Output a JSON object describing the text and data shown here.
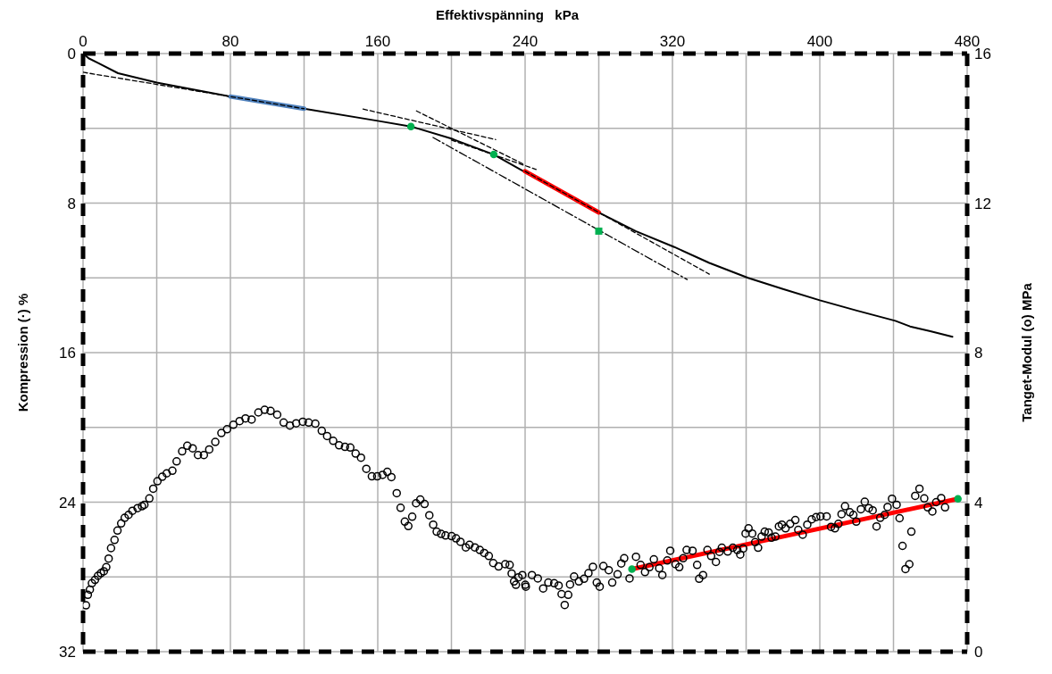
{
  "chart_data": {
    "type": "line",
    "xlabel": "Effektivspänning   kPa",
    "ylabel": "Kompression (·)   %",
    "y2label": "Tanget-Modul (o)   MPa",
    "xlim": [
      0,
      480
    ],
    "xticks": [
      0,
      {
        "value": 40,
        "label": null
      },
      80,
      {
        "value": 120,
        "label": null
      },
      160,
      {
        "value": 200,
        "label": null
      },
      240,
      {
        "value": 280,
        "label": null
      },
      320,
      {
        "value": 360,
        "label": null
      },
      400,
      {
        "value": 440,
        "label": null
      },
      480
    ],
    "ylim": [
      32,
      0
    ],
    "yticks": [
      0,
      {
        "value": 4,
        "label": null
      },
      8,
      {
        "value": 12,
        "label": null
      },
      16,
      {
        "value": 20,
        "label": null
      },
      24,
      {
        "value": 28,
        "label": null
      },
      32
    ],
    "y2lim": [
      0,
      16
    ],
    "y2ticks": [
      0,
      4,
      8,
      12,
      16
    ],
    "grid": true,
    "series": [
      {
        "color": "#000000",
        "marker": "none",
        "line_style": "solid",
        "x": [
          0,
          3,
          8,
          19,
          40,
          80,
          120,
          160,
          178,
          200,
          223,
          240,
          260,
          281,
          300,
          321,
          340,
          361,
          380,
          400,
          420,
          441,
          449,
          460,
          472
        ],
        "values": [
          0,
          0.25,
          0.5,
          1.05,
          1.55,
          2.3,
          2.95,
          3.6,
          3.9,
          4.55,
          5.4,
          6.35,
          7.45,
          8.55,
          9.5,
          10.35,
          11.2,
          12.0,
          12.6,
          13.2,
          13.75,
          14.3,
          14.6,
          14.85,
          15.15
        ]
      },
      {
        "type": "line",
        "color": "#4f81bd",
        "marker": "none",
        "line_style": "solid",
        "x": [
          80,
          120
        ],
        "values": [
          2.3,
          2.95
        ]
      },
      {
        "type": "line",
        "color": "#ff0000",
        "marker": "none",
        "line_style": "solid",
        "x": [
          240,
          280
        ],
        "values": [
          6.3,
          8.5
        ]
      },
      {
        "type": "line",
        "color": "#000000",
        "marker": "none",
        "line_style": "dashed",
        "x": [
          0,
          120
        ],
        "values": [
          1.0,
          2.95
        ]
      },
      {
        "type": "line",
        "color": "#000000",
        "marker": "none",
        "line_style": "dashed",
        "x": [
          152,
          224
        ],
        "values": [
          2.97,
          4.6
        ]
      },
      {
        "type": "line",
        "color": "#000000",
        "marker": "none",
        "line_style": "dashed",
        "x": [
          181,
          240
        ],
        "values": [
          3.07,
          5.96
        ]
      },
      {
        "type": "line",
        "color": "#000000",
        "marker": "none",
        "line_style": "dashed",
        "x": [
          200,
          246
        ],
        "values": [
          4.63,
          6.2
        ]
      },
      {
        "type": "line",
        "color": "#000000",
        "marker": "none",
        "line_style": "dashed",
        "x": [
          240,
          340
        ],
        "values": [
          6.3,
          11.8
        ]
      },
      {
        "type": "line",
        "color": "#000000",
        "marker": "none",
        "line_style": "dashdot",
        "x": [
          190,
          328
        ],
        "values": [
          4.49,
          12.09
        ]
      },
      {
        "type": "scatter",
        "color": "#00b050",
        "marker": "circle",
        "x": [
          178,
          223
        ],
        "values": [
          3.9,
          5.4
        ]
      },
      {
        "type": "scatter",
        "color": "#00b050",
        "marker": "square",
        "x": [
          280
        ],
        "values": [
          9.5
        ]
      },
      {
        "type": "scatter",
        "color": "#000000",
        "marker": "circle",
        "axis": "y2",
        "x": [
          1.6,
          2.6,
          3.7,
          4.8,
          6.5,
          8.1,
          9.7,
          11.3,
          12.6,
          13.9,
          15.2,
          17.1,
          18.7,
          20.7,
          22.6,
          24.7,
          26.8,
          29.6,
          32.0,
          33.3,
          36.0,
          38.1,
          40.4,
          43.0,
          45.4,
          48.5,
          50.8,
          53.8,
          56.6,
          59.5,
          62.4,
          65.6,
          68.5,
          71.8,
          75.1,
          78.2,
          81.6,
          85.0,
          88.2,
          91.5,
          95.2,
          98.6,
          101.8,
          105.4,
          108.9,
          112.3,
          115.7,
          119.3,
          122.5,
          126.1,
          129.6,
          132.5,
          135.8,
          139.0,
          142.2,
          145.1,
          148.0,
          150.9,
          153.8,
          156.8,
          159.7,
          162.6,
          165.2,
          167.4,
          170.3,
          172.4,
          174.7,
          176.6,
          178.7,
          180.8,
          183.1,
          185.4,
          188.0,
          190.1,
          192.0,
          194.4,
          196.8,
          200.1,
          202.5,
          204.9,
          207.8,
          209.8,
          212.7,
          215.4,
          217.8,
          220.3,
          222.7,
          225.6,
          229.2,
          231.6,
          232.7,
          234.0,
          235.0,
          236.4,
          238.5,
          240.1,
          240.4,
          243.7,
          246.9,
          249.8,
          252.6,
          255.8,
          258.2,
          259.8,
          261.5,
          263.4,
          264.4,
          266.6,
          269.2,
          272.0,
          274.4,
          276.8,
          278.9,
          280.5,
          282.5,
          285.4,
          287.3,
          290.2,
          292.2,
          293.8,
          296.7,
          300.2,
          302.7,
          305.1,
          307.5,
          309.9,
          312.8,
          314.5,
          317.2,
          318.8,
          321.6,
          323.7,
          325.8,
          327.7,
          330.9,
          333.4,
          334.5,
          336.6,
          339.0,
          341.0,
          343.6,
          345.5,
          346.8,
          350.0,
          352.8,
          355.2,
          356.8,
          358.4,
          359.7,
          361.3,
          363.3,
          364.9,
          366.5,
          368.4,
          370.1,
          372.2,
          373.8,
          375.9,
          377.8,
          379.4,
          381.4,
          383.9,
          386.7,
          388.3,
          390.7,
          393.2,
          395.6,
          398.0,
          400.4,
          403.7,
          406.1,
          408.2,
          410.1,
          411.8,
          413.7,
          416.3,
          418.2,
          419.8,
          422.3,
          424.4,
          426.6,
          428.7,
          430.8,
          432.8,
          435.2,
          436.8,
          439.2,
          441.7,
          443.3,
          444.9,
          446.5,
          448.6,
          449.7,
          451.8,
          454.1,
          456.7,
          458.6,
          461.1,
          463.2,
          465.9,
          468.0
        ],
        "values": [
          1.24,
          1.52,
          1.66,
          1.83,
          1.92,
          2.03,
          2.1,
          2.15,
          2.26,
          2.49,
          2.77,
          2.99,
          3.24,
          3.43,
          3.58,
          3.66,
          3.77,
          3.84,
          3.89,
          3.93,
          4.1,
          4.36,
          4.56,
          4.68,
          4.77,
          4.84,
          5.09,
          5.36,
          5.51,
          5.44,
          5.26,
          5.26,
          5.41,
          5.61,
          5.85,
          5.95,
          6.07,
          6.17,
          6.24,
          6.21,
          6.4,
          6.47,
          6.44,
          6.34,
          6.13,
          6.05,
          6.11,
          6.15,
          6.13,
          6.1,
          5.91,
          5.77,
          5.64,
          5.52,
          5.48,
          5.46,
          5.3,
          5.19,
          4.89,
          4.69,
          4.69,
          4.73,
          4.81,
          4.67,
          4.24,
          3.85,
          3.48,
          3.36,
          3.61,
          3.97,
          4.07,
          3.95,
          3.65,
          3.4,
          3.21,
          3.15,
          3.11,
          3.09,
          3.03,
          2.94,
          2.79,
          2.86,
          2.79,
          2.72,
          2.64,
          2.56,
          2.37,
          2.28,
          2.34,
          2.32,
          2.09,
          1.88,
          1.79,
          1.99,
          2.05,
          1.79,
          1.74,
          2.05,
          1.96,
          1.69,
          1.85,
          1.83,
          1.77,
          1.54,
          1.25,
          1.52,
          1.8,
          2.01,
          1.88,
          1.95,
          2.1,
          2.27,
          1.85,
          1.74,
          2.29,
          2.18,
          1.85,
          2.07,
          2.36,
          2.5,
          1.96,
          2.54,
          2.32,
          2.13,
          2.26,
          2.47,
          2.23,
          2.05,
          2.44,
          2.7,
          2.34,
          2.26,
          2.5,
          2.72,
          2.7,
          2.32,
          1.95,
          2.05,
          2.72,
          2.56,
          2.4,
          2.67,
          2.78,
          2.68,
          2.78,
          2.72,
          2.6,
          2.76,
          3.16,
          3.3,
          3.16,
          2.93,
          2.78,
          3.08,
          3.21,
          3.19,
          3.05,
          3.08,
          3.35,
          3.4,
          3.3,
          3.42,
          3.52,
          3.26,
          3.13,
          3.4,
          3.54,
          3.6,
          3.62,
          3.62,
          3.34,
          3.3,
          3.42,
          3.68,
          3.89,
          3.73,
          3.66,
          3.48,
          3.81,
          4.01,
          3.84,
          3.78,
          3.35,
          3.58,
          3.66,
          3.87,
          4.09,
          3.93,
          3.57,
          2.83,
          2.21,
          2.34,
          3.21,
          4.17,
          4.36,
          4.1,
          3.86,
          3.75,
          4.0,
          4.11,
          3.86
        ]
      },
      {
        "type": "line",
        "color": "#ff0000",
        "marker": "none",
        "line_style": "solid",
        "axis": "y2",
        "x": [
          298,
          475
        ],
        "values": [
          2.21,
          4.09
        ]
      },
      {
        "type": "scatter",
        "color": "#00b050",
        "marker": "circle",
        "axis": "y2",
        "x": [
          298,
          475
        ],
        "values": [
          2.21,
          4.09
        ]
      }
    ]
  }
}
